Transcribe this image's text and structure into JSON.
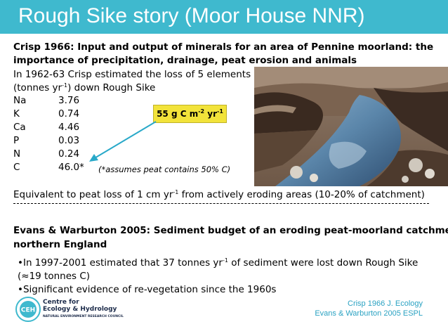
{
  "title": "Rough Sike story (Moor House NNR)",
  "crisp": {
    "heading_line1": "Crisp 1966: Input and output of minerals for an area of Pennine moorland: the",
    "heading_line2": "importance of precipitation, drainage, peat erosion and animals",
    "intro_line1": "In 1962-63 Crisp estimated the loss of 5 elements",
    "intro_line2_a": "(tonnes yr",
    "intro_line2_sup": "-1",
    "intro_line2_b": ") down Rough Sike",
    "elements": [
      {
        "symbol": "Na",
        "value": "3.76"
      },
      {
        "symbol": "K",
        "value": "0.74"
      },
      {
        "symbol": "Ca",
        "value": "4.46"
      },
      {
        "symbol": "P",
        "value": "0.03"
      },
      {
        "symbol": "N",
        "value": "0.24"
      },
      {
        "symbol": "C",
        "value": "46.0*"
      }
    ],
    "footnote": "(*assumes peat contains 50% C)",
    "callout": {
      "a": "55 g C m",
      "sup1": "-2",
      "b": " yr",
      "sup2": "-1"
    },
    "equivalent_a": "Equivalent to peat loss of 1 cm yr",
    "equivalent_sup": "-1",
    "equivalent_b": " from actively eroding areas (10-20% of catchment)"
  },
  "evans": {
    "heading_line1": "Evans & Warburton 2005: Sediment budget of an eroding peat-moorland catchment in",
    "heading_line2": "northern England",
    "bullet1_a": "•In 1997-2001 estimated that 37 tonnes yr",
    "bullet1_sup": "-1",
    "bullet1_b": " of sediment were lost down Rough Sike",
    "bullet1_line2": "(≈19 tonnes C)",
    "bullet2": "•Significant evidence of re-vegetation since the 1960s"
  },
  "references": [
    "Crisp 1966 J. Ecology",
    "Evans & Warburton 2005 ESPL"
  ],
  "logo": {
    "mark_text": "CEH",
    "line1": "Centre for",
    "line2": "Ecology & Hydrology",
    "line3": "NATURAL ENVIRONMENT RESEARCH COUNCIL"
  },
  "colors": {
    "title_bar": "#3fb9ce",
    "callout": "#f2e33a",
    "arrow": "#29a9c9",
    "references": "#2aa2c2"
  }
}
